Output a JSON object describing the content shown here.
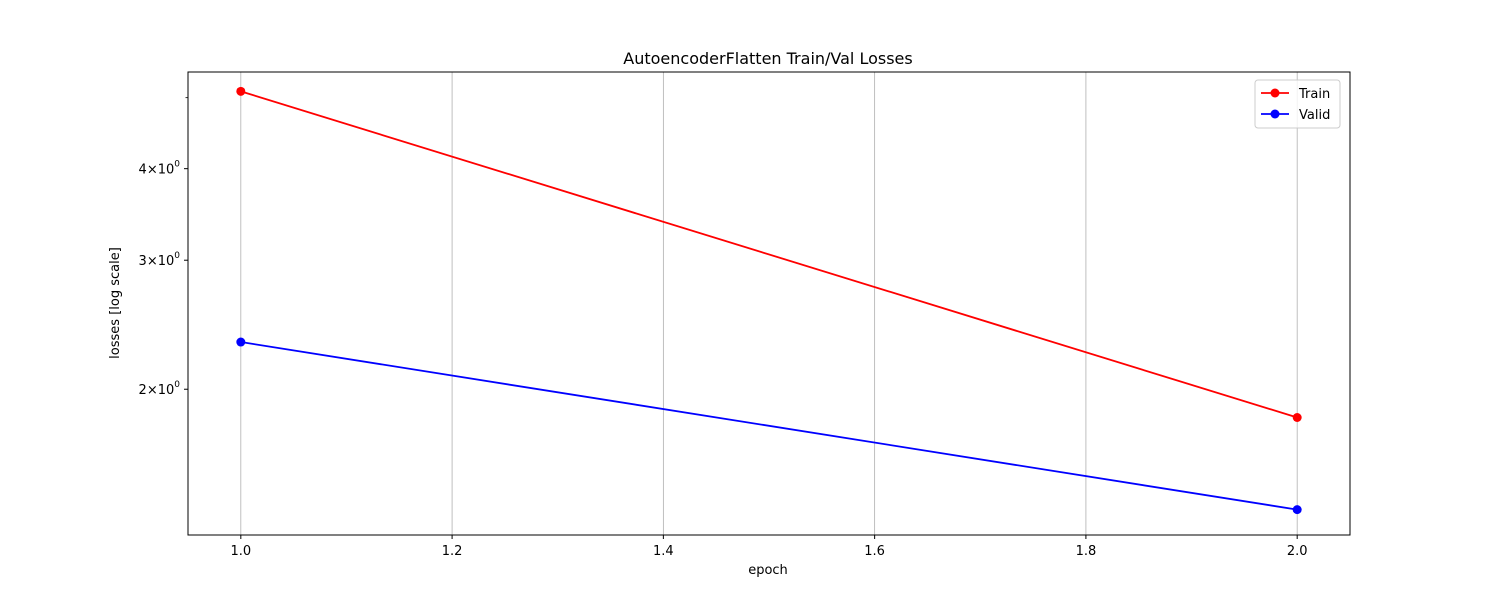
{
  "chart_data": {
    "type": "line",
    "title": "AutoencoderFlatten Train/Val Losses",
    "xlabel": "epoch",
    "ylabel": "losses [log scale]",
    "yscale": "log",
    "xlim": [
      0.95,
      2.05
    ],
    "ylim": [
      1.265,
      5.42
    ],
    "x": [
      1.0,
      2.0
    ],
    "x_ticks": [
      1.0,
      1.2,
      1.4,
      1.6,
      1.8,
      2.0
    ],
    "x_tick_labels": [
      "1.0",
      "1.2",
      "1.4",
      "1.6",
      "1.8",
      "2.0"
    ],
    "y_major_ticks": [
      {
        "value": 2,
        "mantissa": "2",
        "base": "10",
        "exp": "0"
      },
      {
        "value": 3,
        "mantissa": "3",
        "base": "10",
        "exp": "0"
      },
      {
        "value": 4,
        "mantissa": "4",
        "base": "10",
        "exp": "0"
      }
    ],
    "y_minor_ticks": [
      5
    ],
    "grid": "x-only",
    "legend_position": "top-right",
    "series": [
      {
        "name": "Train",
        "color": "#ff0000",
        "values": [
          5.1,
          1.83
        ]
      },
      {
        "name": "Valid",
        "color": "#0000ff",
        "values": [
          2.32,
          1.37
        ]
      }
    ]
  }
}
